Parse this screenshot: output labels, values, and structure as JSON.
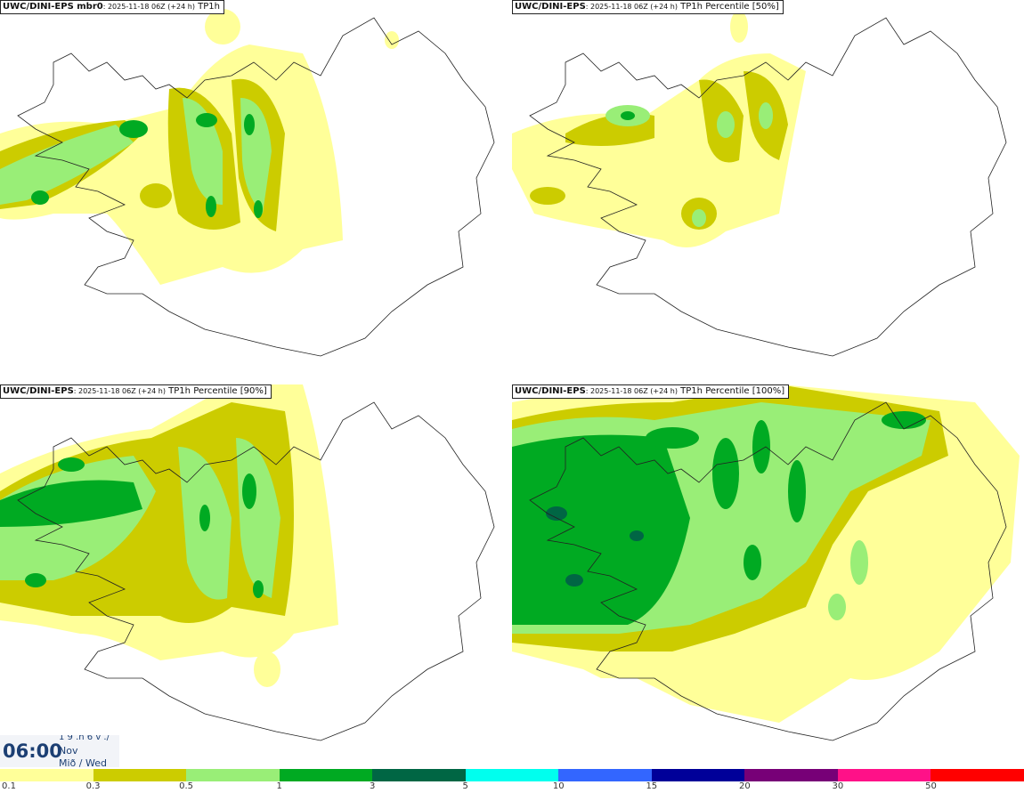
{
  "panels": [
    {
      "model": "UWC/DINI-EPS mbr0",
      "run": ": 2025-11-18 06Z (+24 h)",
      "field": "TP1h"
    },
    {
      "model": "UWC/DINI-EPS",
      "run": ": 2025-11-18 06Z (+24 h)",
      "field": "TP1h Percentile [50%]"
    },
    {
      "model": "UWC/DINI-EPS",
      "run": ": 2025-11-18 06Z (+24 h)",
      "field": "TP1h Percentile [90%]"
    },
    {
      "model": "UWC/DINI-EPS",
      "run": ": 2025-11-18 06Z (+24 h)",
      "field": "TP1h Percentile [100%]"
    }
  ],
  "time_box": {
    "time": "06:00",
    "top_line": "1 9 .n 6 v ./",
    "month": "Nov",
    "weekday": "Mið / Wed"
  },
  "legend": {
    "colors": [
      "#ffff99",
      "#cccc00",
      "#99ee77",
      "#00aa22",
      "#006644",
      "#00ffee",
      "#3366ff",
      "#000099",
      "#770077",
      "#ff1188",
      "#ff0000"
    ],
    "ticks": [
      "0.1",
      "0.3",
      "0.5",
      "1",
      "3",
      "5",
      "10",
      "15",
      "20",
      "30",
      "50"
    ]
  },
  "map_colors": {
    "light": "#ffff99",
    "olive": "#cccc00",
    "lightgreen": "#99ee77",
    "green": "#00aa22",
    "dark": "#006644",
    "coast": "#222222"
  }
}
